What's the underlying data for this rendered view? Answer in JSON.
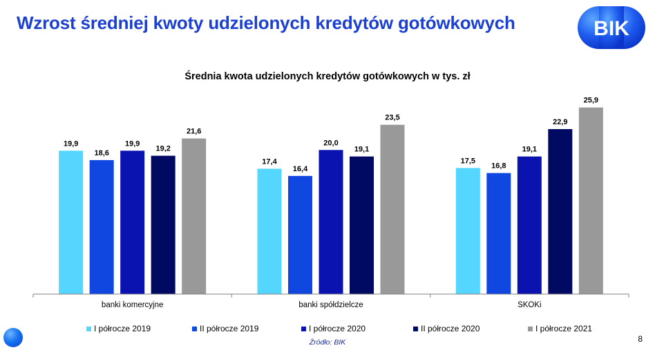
{
  "slide": {
    "title": "Wzrost średniej kwoty udzielonych kredytów gotówkowych",
    "logo_text": "BIK",
    "source": "Źródło: BIK",
    "page_number": "8"
  },
  "colors": {
    "title": "#1a3fd1",
    "logo": "#1f5bef",
    "series": [
      "#55d6ff",
      "#0f47e0",
      "#0a12b0",
      "#000a63",
      "#999999"
    ]
  },
  "chart_data": {
    "type": "bar",
    "title": "Średnia kwota udzielonych kredytów gotówkowych w tys. zł",
    "xlabel": "",
    "ylabel": "",
    "ylim": [
      0,
      27.5
    ],
    "grid": false,
    "legend_position": "bottom",
    "categories": [
      "banki komercyjne",
      "banki spółdzielcze",
      "SKOKi"
    ],
    "series": [
      {
        "name": "I półrocze 2019",
        "values": [
          19.9,
          17.4,
          17.5
        ]
      },
      {
        "name": "II półrocze 2019",
        "values": [
          18.6,
          16.4,
          16.8
        ]
      },
      {
        "name": "I półrocze 2020",
        "values": [
          19.9,
          20.0,
          19.1
        ]
      },
      {
        "name": "II półrocze 2020",
        "values": [
          19.2,
          19.1,
          22.9
        ]
      },
      {
        "name": "I półrocze 2021",
        "values": [
          21.6,
          23.5,
          25.9
        ]
      }
    ],
    "value_labels": [
      [
        "19,9",
        "17,4",
        "17,5"
      ],
      [
        "18,6",
        "16,4",
        "16,8"
      ],
      [
        "19,9",
        "20,0",
        "19,1"
      ],
      [
        "19,2",
        "19,1",
        "22,9"
      ],
      [
        "21,6",
        "23,5",
        "25,9"
      ]
    ]
  }
}
